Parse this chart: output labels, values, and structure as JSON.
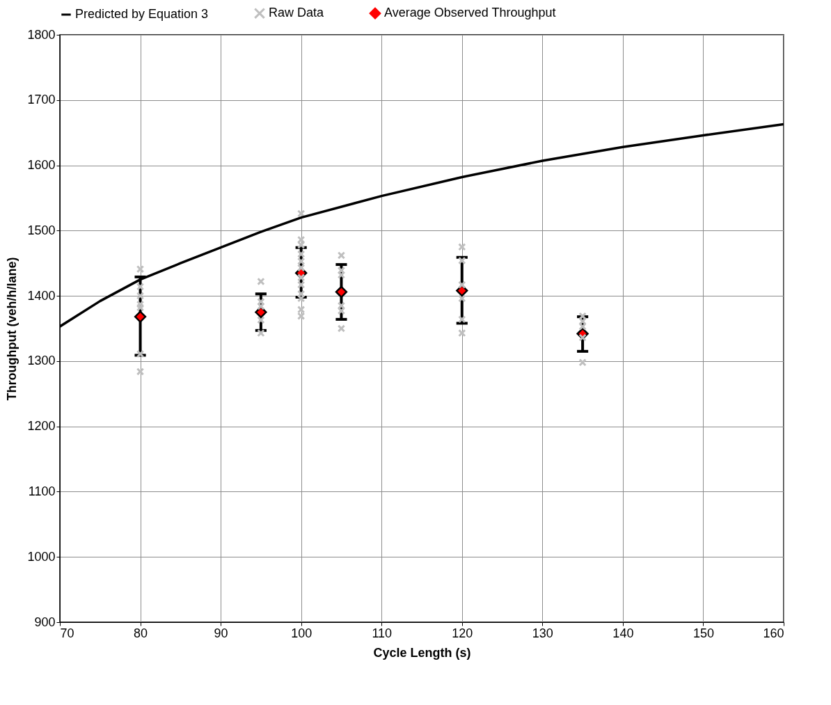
{
  "chart_data": {
    "type": "scatter",
    "xlabel": "Cycle Length (s)",
    "ylabel": "Throughput (veh/h/lane)",
    "xlim": [
      70,
      160
    ],
    "xticks": [
      70,
      80,
      90,
      100,
      110,
      120,
      130,
      140,
      150,
      160
    ],
    "ylim": [
      900,
      1800
    ],
    "yticks": [
      900,
      1000,
      1100,
      1200,
      1300,
      1400,
      1500,
      1600,
      1700,
      1800
    ],
    "grid": true,
    "legend": "top",
    "series": [
      {
        "name": "Predicted by Equation 3",
        "type": "line",
        "marker": "none",
        "line_style": "solid",
        "color": "#000000",
        "x": [
          70,
          75,
          80,
          85,
          90,
          95,
          100,
          110,
          120,
          130,
          140,
          150,
          160
        ],
        "values": [
          1353,
          1392,
          1425,
          1450,
          1474,
          1498,
          1520,
          1553,
          1582,
          1607,
          1628,
          1646,
          1663
        ]
      },
      {
        "name": "Raw Data",
        "marker": "cross",
        "color": "#bfbfbf",
        "x": [
          80,
          80,
          80,
          80,
          80,
          80,
          80,
          95,
          95,
          95,
          95,
          95,
          100,
          100,
          100,
          100,
          100,
          100,
          100,
          100,
          100,
          100,
          100,
          100,
          105,
          105,
          105,
          105,
          105,
          105,
          120,
          120,
          120,
          120,
          120,
          120,
          135,
          135,
          135,
          135,
          135
        ],
        "values": [
          1441,
          1414,
          1400,
          1387,
          1382,
          1311,
          1284,
          1422,
          1391,
          1384,
          1363,
          1343,
          1526,
          1486,
          1478,
          1464,
          1453,
          1443,
          1428,
          1417,
          1403,
          1396,
          1379,
          1369,
          1462,
          1439,
          1432,
          1385,
          1377,
          1350,
          1475,
          1454,
          1417,
          1396,
          1364,
          1343,
          1369,
          1361,
          1353,
          1336,
          1298
        ]
      },
      {
        "name": "Average Observed Throughput",
        "marker": "diamond",
        "color": "#ff0000",
        "x": [
          80,
          95,
          100,
          105,
          120,
          135
        ],
        "values": [
          1368,
          1375,
          1435,
          1406,
          1408,
          1342
        ],
        "errors": [
          [
            1309,
            1429
          ],
          [
            1347,
            1403
          ],
          [
            1398,
            1474
          ],
          [
            1364,
            1448
          ],
          [
            1358,
            1459
          ],
          [
            1315,
            1368
          ]
        ]
      }
    ]
  }
}
